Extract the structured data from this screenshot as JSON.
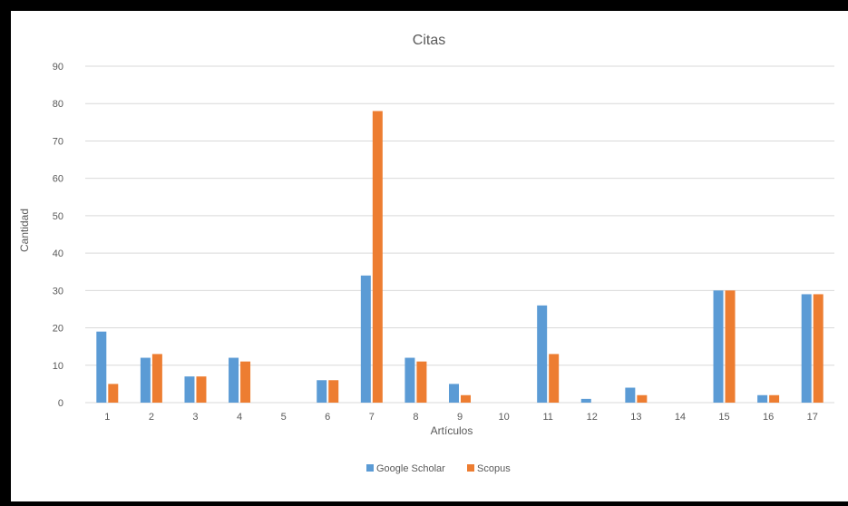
{
  "chart_data": {
    "type": "bar",
    "title": "Citas",
    "xlabel": "Artículos",
    "ylabel": "Cantidad",
    "categories": [
      "1",
      "2",
      "3",
      "4",
      "5",
      "6",
      "7",
      "8",
      "9",
      "10",
      "11",
      "12",
      "13",
      "14",
      "15",
      "16",
      "17"
    ],
    "series": [
      {
        "name": "Google Scholar",
        "color": "#5B9BD5",
        "values": [
          19,
          12,
          7,
          12,
          0,
          6,
          34,
          12,
          5,
          0,
          26,
          1,
          4,
          0,
          30,
          2,
          29
        ]
      },
      {
        "name": "Scopus",
        "color": "#ED7D31",
        "values": [
          5,
          13,
          7,
          11,
          0,
          6,
          78,
          11,
          2,
          0,
          13,
          0,
          2,
          0,
          30,
          2,
          29
        ]
      }
    ],
    "ylim": [
      0,
      90
    ],
    "yticks": [
      0,
      10,
      20,
      30,
      40,
      50,
      60,
      70,
      80,
      90
    ],
    "grid": true,
    "legend_position": "bottom"
  }
}
